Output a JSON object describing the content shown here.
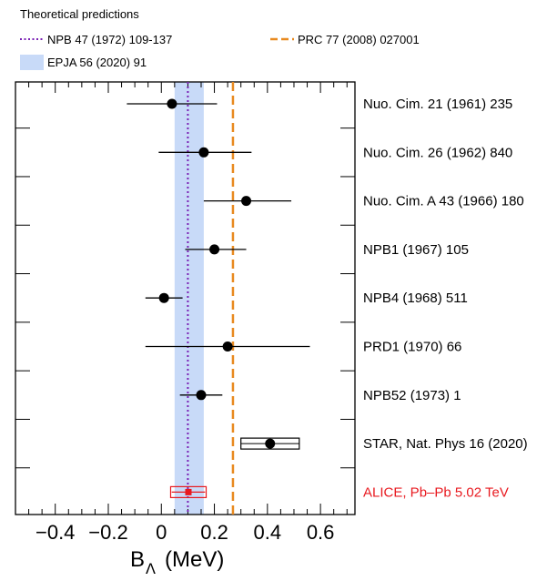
{
  "chart_data": {
    "type": "scatter",
    "title": "",
    "xlabel_main": "B",
    "xlabel_sub": "Λ",
    "xlabel_unit": "(MeV)",
    "xlim": [
      -0.55,
      0.73
    ],
    "xticks": [
      {
        "value": -0.4,
        "label": "−0.4"
      },
      {
        "value": -0.2,
        "label": "−0.2"
      },
      {
        "value": 0,
        "label": "0"
      },
      {
        "value": 0.2,
        "label": "0.2"
      },
      {
        "value": 0.4,
        "label": "0.4"
      },
      {
        "value": 0.6,
        "label": "0.6"
      }
    ],
    "legend": {
      "header": "Theoretical predictions",
      "items": [
        {
          "key": "npb47",
          "label": "NPB 47 (1972) 109-137",
          "style": "dotted-line",
          "color": "#7b22b4"
        },
        {
          "key": "prc77",
          "label": "PRC 77 (2008) 027001",
          "style": "dashed-line",
          "color": "#e8891f"
        },
        {
          "key": "epja56",
          "label": "EPJA 56 (2020) 91",
          "style": "band",
          "color": "#c8daf8"
        }
      ]
    },
    "theory": {
      "npb47_value": 0.1,
      "prc77_value": 0.27,
      "epja56_band": [
        0.05,
        0.16
      ]
    },
    "series": [
      {
        "label": "Nuo. Cim. 21 (1961) 235",
        "value": 0.04,
        "err_low": 0.17,
        "err_high": 0.17,
        "marker": "point",
        "color": "#000000"
      },
      {
        "label": "Nuo. Cim. 26 (1962) 840",
        "value": 0.16,
        "err_low": 0.17,
        "err_high": 0.18,
        "marker": "point",
        "color": "#000000"
      },
      {
        "label": "Nuo. Cim. A 43 (1966) 180",
        "value": 0.32,
        "err_low": 0.16,
        "err_high": 0.17,
        "marker": "point",
        "color": "#000000"
      },
      {
        "label": "NPB1 (1967) 105",
        "value": 0.2,
        "err_low": 0.11,
        "err_high": 0.12,
        "marker": "point",
        "color": "#000000"
      },
      {
        "label": "NPB4 (1968) 511",
        "value": 0.01,
        "err_low": 0.07,
        "err_high": 0.07,
        "marker": "point",
        "color": "#000000"
      },
      {
        "label": "PRD1 (1970) 66",
        "value": 0.25,
        "err_low": 0.31,
        "err_high": 0.31,
        "marker": "point",
        "color": "#000000"
      },
      {
        "label": "NPB52 (1973) 1",
        "value": 0.15,
        "err_low": 0.08,
        "err_high": 0.08,
        "marker": "point",
        "color": "#000000"
      },
      {
        "label": "STAR, Nat. Phys 16 (2020)",
        "value": 0.41,
        "err_low": 0.0,
        "err_high": 0.0,
        "sys_low": 0.11,
        "sys_high": 0.11,
        "marker": "point-box",
        "color": "#000000"
      },
      {
        "label": "ALICE, Pb–Pb 5.02 TeV",
        "value": 0.102,
        "err_low": 0.063,
        "err_high": 0.063,
        "sys_low": 0.067,
        "sys_high": 0.067,
        "marker": "square-box",
        "color": "#e8191f"
      }
    ]
  }
}
